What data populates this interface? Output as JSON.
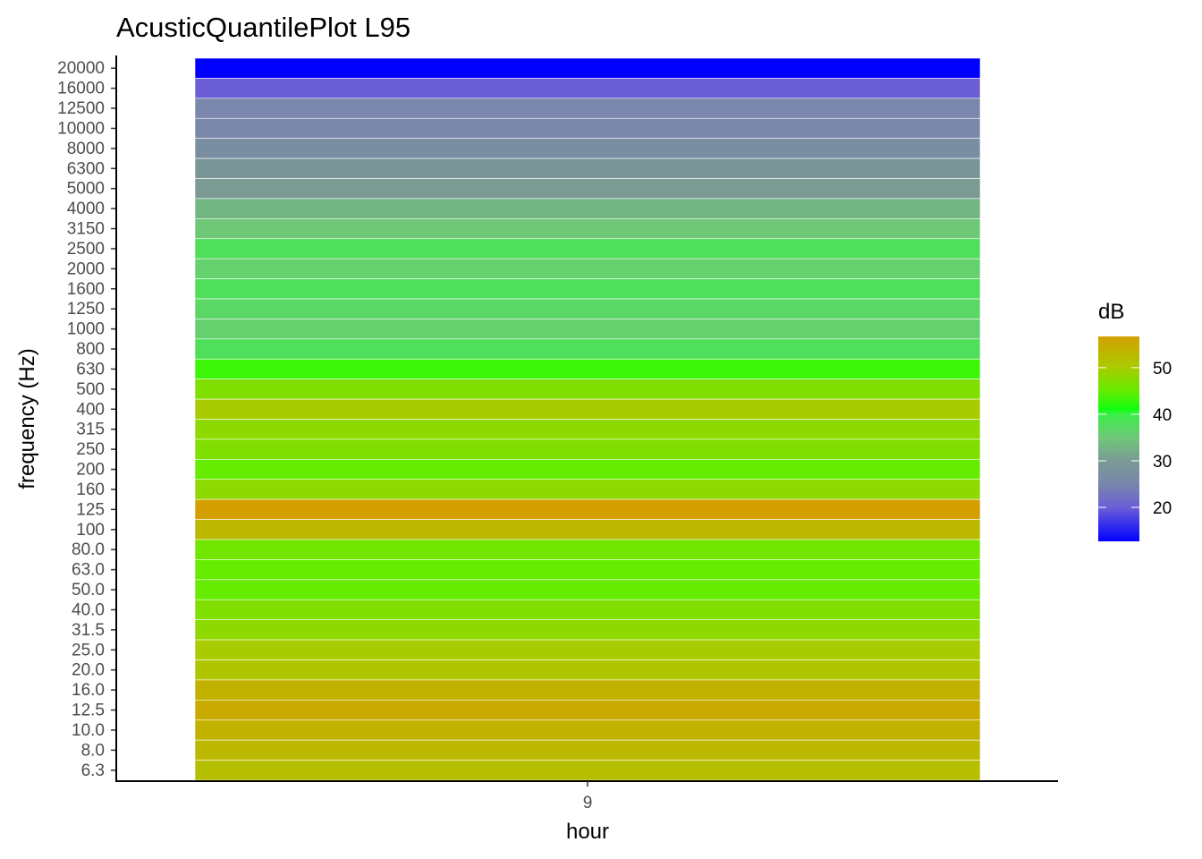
{
  "chart_data": {
    "type": "heatmap",
    "title": "AcusticQuantilePlot L95",
    "xlabel": "hour",
    "ylabel": "frequency (Hz)",
    "x_categories": [
      "9"
    ],
    "y_categories": [
      "20000",
      "16000",
      "12500",
      "10000",
      "8000",
      "6300",
      "5000",
      "4000",
      "3150",
      "2500",
      "2000",
      "1600",
      "1250",
      "1000",
      "800",
      "630",
      "500",
      "400",
      "315",
      "250",
      "200",
      "160",
      "125",
      "100",
      "80.0",
      "63.0",
      "50.0",
      "40.0",
      "31.5",
      "25.0",
      "20.0",
      "16.0",
      "12.5",
      "10.0",
      "8.0",
      "6.3"
    ],
    "values": [
      12.7,
      20,
      25,
      25.5,
      27,
      29,
      30,
      33,
      35,
      38,
      36,
      38,
      37,
      36,
      38,
      43,
      47,
      50,
      48,
      47,
      45,
      48,
      56.7,
      53,
      46,
      45,
      45,
      47,
      48,
      50,
      51,
      54,
      55,
      54,
      53,
      52
    ],
    "legend": {
      "title": "dB",
      "ticks": [
        "20",
        "30",
        "40",
        "50"
      ],
      "range": [
        12.7,
        56.7
      ],
      "position": "right",
      "color_stops": [
        {
          "value": 12.7,
          "color": "#0000ff"
        },
        {
          "value": 20,
          "color": "#6c5fd6"
        },
        {
          "value": 25,
          "color": "#7a86ab"
        },
        {
          "value": 30,
          "color": "#7b9a94"
        },
        {
          "value": 35,
          "color": "#6ec878"
        },
        {
          "value": 40,
          "color": "#3cee48"
        },
        {
          "value": 41,
          "color": "#10ff10"
        },
        {
          "value": 45,
          "color": "#66ec00"
        },
        {
          "value": 50,
          "color": "#a8cc00"
        },
        {
          "value": 56.7,
          "color": "#d4a000"
        }
      ]
    },
    "grid": false
  }
}
